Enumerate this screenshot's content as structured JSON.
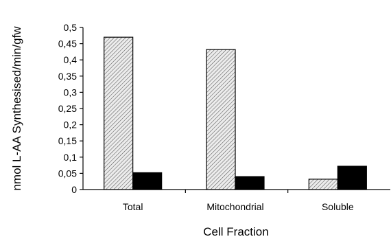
{
  "chart_data": {
    "type": "bar",
    "categories": [
      "Total",
      "Mitochondrial",
      "Soluble"
    ],
    "series": [
      {
        "values": [
          0.47,
          0.432,
          0.032
        ],
        "color": "#d9d9d9",
        "pattern": "diagonal-hatch"
      },
      {
        "values": [
          0.052,
          0.04,
          0.072
        ],
        "color": "#000000",
        "pattern": "solid"
      }
    ],
    "xlabel": "Cell Fraction",
    "ylabel": "nmol L-AA Synthesised/min/gfw",
    "ylim": [
      0,
      0.5
    ],
    "yticks": [
      "0",
      "0,05",
      "0,1",
      "0,15",
      "0,2",
      "0,25",
      "0,3",
      "0,35",
      "0,4",
      "0,45",
      "0,5"
    ],
    "grid": false,
    "legend": "none"
  }
}
